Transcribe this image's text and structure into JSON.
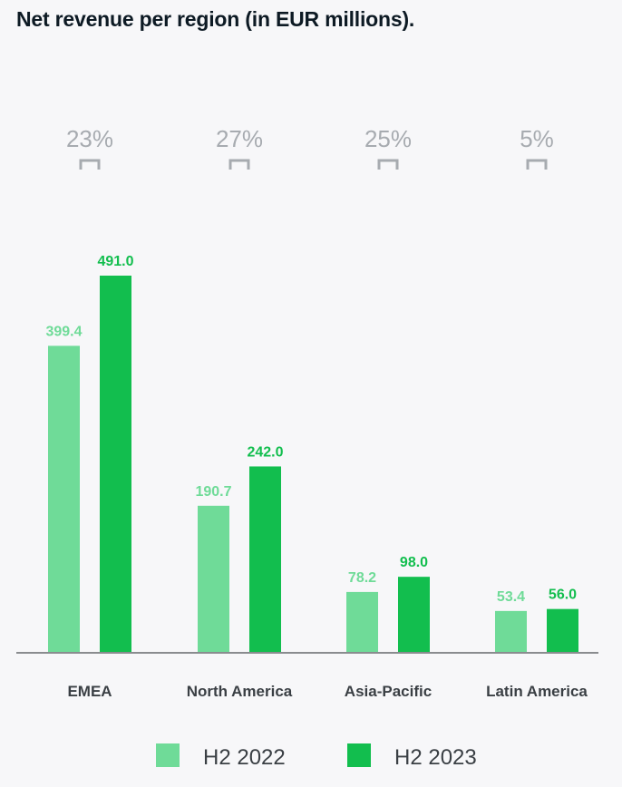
{
  "chart_data": {
    "type": "bar",
    "title": "Net revenue per region (in EUR millions).",
    "categories": [
      "EMEA",
      "North America",
      "Asia-Pacific",
      "Latin America"
    ],
    "series": [
      {
        "name": "H2 2022",
        "values": [
          399.4,
          190.7,
          78.2,
          53.4
        ],
        "labels": [
          "399.4",
          "190.7",
          "78.2",
          "53.4"
        ],
        "color": "#6fdb98"
      },
      {
        "name": "H2 2023",
        "values": [
          491.0,
          242.0,
          98.0,
          56.0
        ],
        "labels": [
          "491.0",
          "242.0",
          "98.0",
          "56.0"
        ],
        "color": "#12be4e"
      }
    ],
    "growth_labels": [
      "23%",
      "27%",
      "25%",
      "5%"
    ],
    "ylim": [
      0,
      491.0
    ],
    "grid": false,
    "legend_position": "bottom",
    "colors": {
      "axis": "#8a8c8f",
      "growth": "#a7abb0",
      "category_label": "#3a3f44",
      "title": "#0d1a24"
    }
  }
}
